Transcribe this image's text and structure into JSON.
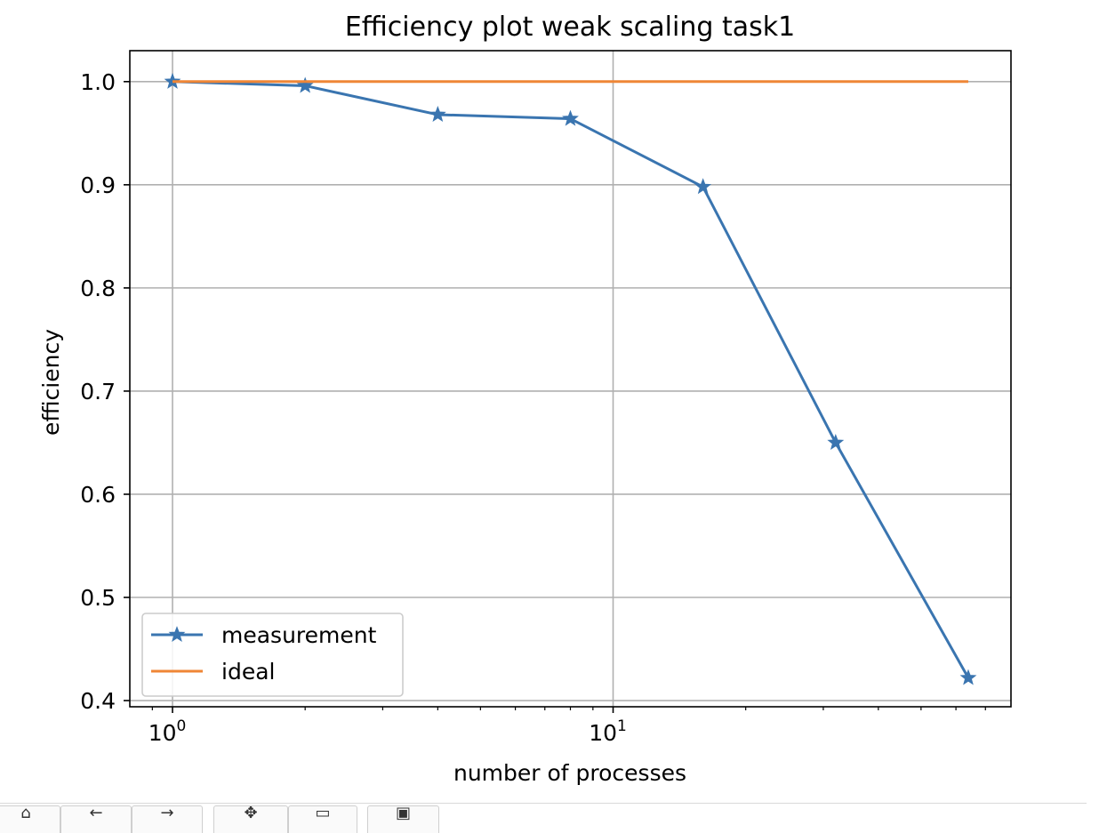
{
  "chart_data": {
    "type": "line",
    "title": "Efficiency plot weak scaling task1",
    "xlabel": "number of processes",
    "ylabel": "efficiency",
    "xscale": "log",
    "xlim": [
      0.8,
      80
    ],
    "ylim": [
      0.394,
      1.03
    ],
    "grid": true,
    "legend_position": "lower-left",
    "x_major_ticks": [
      {
        "value": 1,
        "base": "10",
        "exp": "0"
      },
      {
        "value": 10,
        "base": "10",
        "exp": "1"
      }
    ],
    "y_ticks": [
      {
        "value": 0.4,
        "label": "0.4"
      },
      {
        "value": 0.5,
        "label": "0.5"
      },
      {
        "value": 0.6,
        "label": "0.6"
      },
      {
        "value": 0.7,
        "label": "0.7"
      },
      {
        "value": 0.8,
        "label": "0.8"
      },
      {
        "value": 0.9,
        "label": "0.9"
      },
      {
        "value": 1.0,
        "label": "1.0"
      }
    ],
    "series": [
      {
        "name": "measurement",
        "color": "#3a75b0",
        "marker": "star",
        "x": [
          1,
          2,
          4,
          8,
          16,
          32,
          64
        ],
        "y": [
          1.0,
          0.996,
          0.968,
          0.964,
          0.898,
          0.65,
          0.422
        ]
      },
      {
        "name": "ideal",
        "color": "#ef8636",
        "marker": "none",
        "x": [
          1,
          64
        ],
        "y": [
          1.0,
          1.0
        ]
      }
    ]
  },
  "toolbar": {
    "buttons": [
      {
        "name": "home",
        "icon": "home-icon"
      },
      {
        "name": "back",
        "icon": "arrow-left-icon"
      },
      {
        "name": "forward",
        "icon": "arrow-right-icon"
      },
      {
        "name": "pan",
        "icon": "pan-icon"
      },
      {
        "name": "zoom",
        "icon": "zoom-icon"
      },
      {
        "name": "save",
        "icon": "save-icon"
      }
    ]
  }
}
